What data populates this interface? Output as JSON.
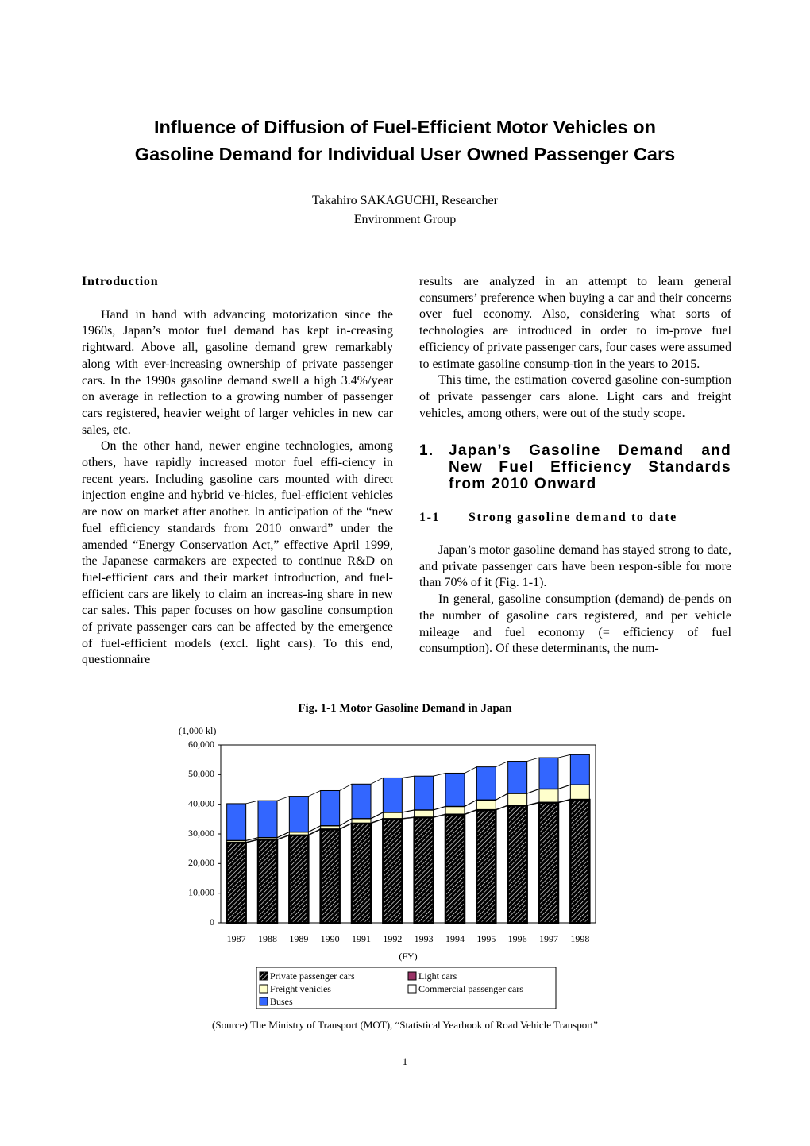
{
  "header": {
    "title_lines": [
      "Influence of Diffusion of Fuel-Efficient Motor Vehicles on",
      "Gasoline Demand for Individual User Owned Passenger Cars"
    ],
    "author": "Takahiro SAKAGUCHI, Researcher",
    "group": "Environment Group"
  },
  "left_column": {
    "heading": "Introduction",
    "paragraphs": [
      "Hand in hand with advancing motorization since the 1960s, Japan’s motor fuel demand has kept in-creasing rightward. Above all, gasoline demand grew remarkably along with ever-increasing ownership of private passenger cars. In the 1990s gasoline demand swell a high 3.4%/year on average in reflection to a growing number of passenger cars registered, heavier weight of larger vehicles in new car sales, etc.",
      "On the other hand, newer engine technologies, among others, have rapidly increased motor fuel effi-ciency in recent years. Including gasoline cars mounted with direct injection engine and hybrid ve-hicles, fuel-efficient vehicles are now on market after another. In anticipation of the “new fuel efficiency standards from 2010 onward” under the amended “Energy Conservation Act,” effective April 1999, the Japanese carmakers are expected to continue R&D on fuel-efficient cars and their market introduction, and fuel-efficient cars are likely to claim an increas-ing share in new car sales. This paper focuses on how gasoline consumption of private passenger cars can be affected by the emergence of fuel-efficient models (excl. light cars). To this end, questionnaire"
    ]
  },
  "right_column": {
    "paragraphs": [
      "results are analyzed in an attempt to learn general consumers’ preference when buying a car and their concerns over fuel economy. Also, considering what sorts of technologies are introduced in order to im-prove fuel efficiency of private passenger cars, four cases were assumed to estimate gasoline consump-tion in the years to 2015.",
      "This time, the estimation covered gasoline con-sumption of private passenger cars alone. Light cars and freight vehicles, among others, were out of the study scope."
    ],
    "section": {
      "number": "1.",
      "title": "Japan’s Gasoline Demand and New Fuel Efficiency Standards from 2010 Onward"
    },
    "subsection": {
      "number": "1-1",
      "title": "Strong gasoline demand to date"
    },
    "section_paragraphs": [
      "Japan’s motor gasoline demand has stayed strong to date, and private passenger cars have been respon-sible for more than 70% of it (Fig. 1-1).",
      "In general, gasoline consumption (demand) de-pends on the number of gasoline cars registered, and per vehicle mileage and fuel economy (= efficiency of fuel consumption). Of these determinants, the num-"
    ]
  },
  "chart_data": {
    "type": "stacked_bar",
    "title": "Fig. 1-1 Motor Gasoline Demand in Japan",
    "y_unit": "(1,000 kl)",
    "x_label": "(FY)",
    "categories": [
      "1987",
      "1988",
      "1989",
      "1990",
      "1991",
      "1992",
      "1993",
      "1994",
      "1995",
      "1996",
      "1997",
      "1998"
    ],
    "series": [
      {
        "name": "Private passenger cars",
        "color": "#000000",
        "pattern": "hatch",
        "values": [
          27000,
          28000,
          29500,
          31500,
          33500,
          35000,
          35500,
          36500,
          38000,
          39500,
          40500,
          41500
        ]
      },
      {
        "name": "Light cars",
        "color": "#993366",
        "values": [
          200,
          200,
          200,
          200,
          200,
          200,
          200,
          200,
          200,
          200,
          200,
          200
        ]
      },
      {
        "name": "Freight vehicles",
        "color": "#ffffcc",
        "values": [
          500,
          500,
          900,
          1000,
          1400,
          2000,
          2300,
          2500,
          3200,
          3900,
          4400,
          4800
        ]
      },
      {
        "name": "Commercial passenger cars",
        "color": "#ffffff",
        "values": [
          100,
          100,
          100,
          100,
          100,
          100,
          100,
          100,
          100,
          100,
          100,
          100
        ]
      },
      {
        "name": "Buses",
        "color": "#3366ff",
        "values": [
          12400,
          12400,
          12000,
          11800,
          11600,
          11600,
          11400,
          11200,
          11100,
          10800,
          10500,
          10100
        ]
      }
    ],
    "ylim": [
      0,
      60000
    ],
    "yticks": [
      0,
      {
        "value": 10000,
        "label": "10,000"
      },
      {
        "value": 20000,
        "label": "20,000"
      },
      {
        "value": 30000,
        "label": "30,000"
      },
      {
        "value": 40000,
        "label": "40,000"
      },
      {
        "value": 50000,
        "label": "50,000"
      },
      {
        "value": 60000,
        "label": "60,000"
      }
    ],
    "grid": false,
    "series_lines": true,
    "source": "(Source)   The Ministry of Transport (MOT), “Statistical Yearbook of Road Vehicle Transport”"
  },
  "page_number": "1"
}
